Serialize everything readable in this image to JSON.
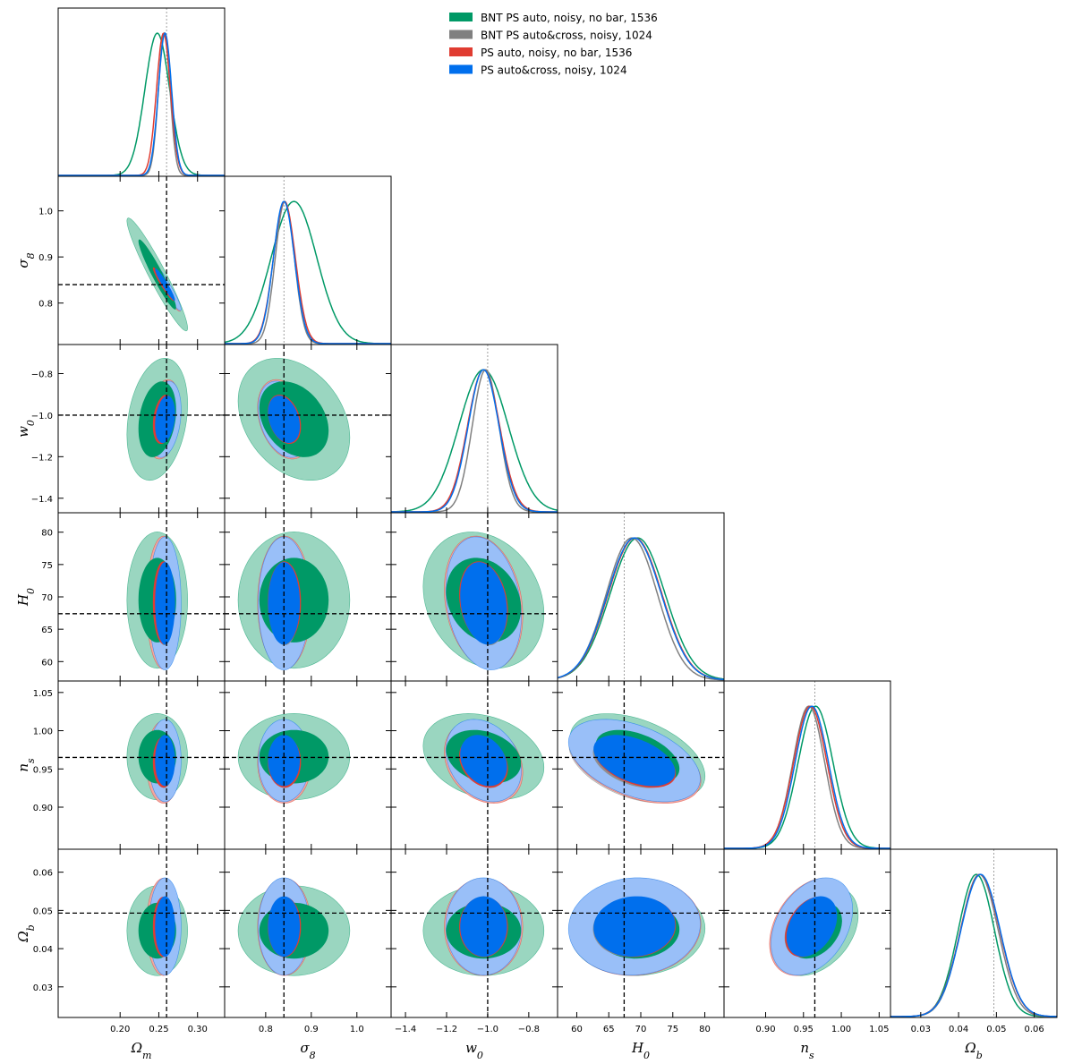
{
  "chart_data": {
    "type": "triangle",
    "title": "",
    "legend": {
      "placement": "top-right",
      "entries": [
        {
          "label": "BNT PS auto, noisy, no bar, 1536",
          "color": "#009966"
        },
        {
          "label": "BNT PS auto&cross, noisy, 1024",
          "color": "#808080"
        },
        {
          "label": "PS auto, noisy, no bar, 1536",
          "color": "#e03c31"
        },
        {
          "label": "PS auto&cross, noisy, 1024",
          "color": "#006fed"
        }
      ]
    },
    "parameters": [
      {
        "key": "Om",
        "symbol": "Ω",
        "sub": "m",
        "range": [
          0.12,
          0.335
        ],
        "ticks": [
          "0.20",
          "0.25",
          "0.30"
        ],
        "tick_values": [
          0.2,
          0.25,
          0.3
        ],
        "truth": 0.26
      },
      {
        "key": "s8",
        "symbol": "σ",
        "sub": "8",
        "range": [
          0.71,
          1.075
        ],
        "ticks": [
          "0.8",
          "0.9",
          "1.0"
        ],
        "tick_values": [
          0.8,
          0.9,
          1.0
        ],
        "truth": 0.84
      },
      {
        "key": "w0",
        "symbol": "w",
        "sub": "0",
        "range": [
          -1.47,
          -0.66
        ],
        "ticks": [
          "−1.4",
          "−1.2",
          "−1.0",
          "−0.8"
        ],
        "tick_values": [
          -1.4,
          -1.2,
          -1.0,
          -0.8
        ],
        "truth": -1.0
      },
      {
        "key": "H0",
        "symbol": "H",
        "sub": "0",
        "range": [
          57.0,
          83.0
        ],
        "ticks": [
          "60",
          "65",
          "70",
          "75",
          "80"
        ],
        "tick_values": [
          60,
          65,
          70,
          75,
          80
        ],
        "truth": 67.4
      },
      {
        "key": "ns",
        "symbol": "n",
        "sub": "s",
        "range": [
          0.845,
          1.065
        ],
        "ticks": [
          "0.90",
          "0.95",
          "1.00",
          "1.05"
        ],
        "tick_values": [
          0.9,
          0.95,
          1.0,
          1.05
        ],
        "truth": 0.965
      },
      {
        "key": "Ob",
        "symbol": "Ω",
        "sub": "b",
        "range": [
          0.022,
          0.066
        ],
        "ticks": [
          "0.03",
          "0.04",
          "0.05",
          "0.06"
        ],
        "tick_values": [
          0.03,
          0.04,
          0.05,
          0.06
        ],
        "truth": 0.0493
      }
    ],
    "series": [
      {
        "name": "BNT PS auto, noisy, no bar, 1536",
        "color": "#009966",
        "fill_outer": "#9ad6c0",
        "fill_inner": "#009966",
        "mean": [
          0.248,
          0.862,
          -1.02,
          69.5,
          0.966,
          0.0447
        ],
        "sd": [
          0.016,
          0.05,
          0.12,
          4.3,
          0.023,
          0.0048
        ]
      },
      {
        "name": "BNT PS auto&cross, noisy, 1024",
        "color": "#808080",
        "fill_outer": "#d2d2d2",
        "fill_inner": "#909090",
        "mean": [
          0.257,
          0.842,
          -1.01,
          68.6,
          0.957,
          0.0455
        ],
        "sd": [
          0.0075,
          0.021,
          0.065,
          4.0,
          0.021,
          0.005
        ]
      },
      {
        "name": "PS auto, noisy, no bar, 1536",
        "color": "#e03c31",
        "fill_outer": "#f1a7a1",
        "fill_inner": "#e03c31",
        "mean": [
          0.256,
          0.841,
          -1.02,
          69.1,
          0.959,
          0.0457
        ],
        "sd": [
          0.009,
          0.024,
          0.078,
          4.2,
          0.022,
          0.0052
        ]
      },
      {
        "name": "PS auto&cross, noisy, 1024",
        "color": "#006fed",
        "fill_outer": "#99bff8",
        "fill_inner": "#006fed",
        "mean": [
          0.258,
          0.84,
          -1.02,
          69.0,
          0.961,
          0.0458
        ],
        "sd": [
          0.0085,
          0.023,
          0.075,
          4.2,
          0.022,
          0.0052
        ]
      }
    ],
    "correlation": [
      {
        "pair": [
          "Om",
          "s8"
        ],
        "rho": -0.95
      },
      {
        "pair": [
          "Om",
          "w0"
        ],
        "rho": 0.25
      },
      {
        "pair": [
          "s8",
          "w0"
        ],
        "rho": -0.3
      },
      {
        "pair": [
          "w0",
          "H0"
        ],
        "rho": -0.2
      },
      {
        "pair": [
          "H0",
          "ns"
        ],
        "rho": -0.45
      },
      {
        "pair": [
          "ns",
          "Ob"
        ],
        "rho": 0.35
      },
      {
        "pair": [
          "H0",
          "Ob"
        ],
        "rho": 0.05
      },
      {
        "pair": [
          "w0",
          "ns"
        ],
        "rho": -0.25
      }
    ]
  }
}
